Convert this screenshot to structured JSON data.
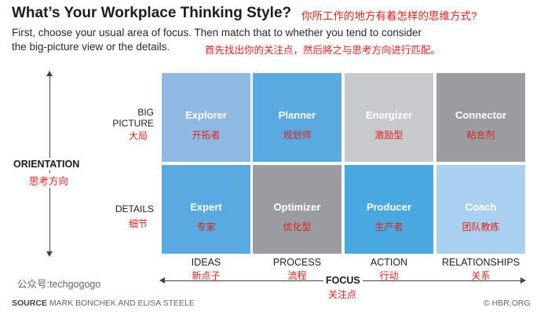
{
  "header": {
    "title": "What’s Your Workplace Thinking Style?",
    "title_cn": "你所工作的地方有着怎样的思维方式?",
    "subtitle_line1": "First, choose your usual area of focus. Then match that to whether you tend to consider",
    "subtitle_line2": "the big-picture view or the details.",
    "subtitle_cn": "首先找出你的关注点，然后將之与思考方向进行匹配。"
  },
  "orientation": {
    "label": "ORIENTATION",
    "label_cn": "思考方向"
  },
  "rows": [
    {
      "label_line1": "BIG",
      "label_line2": "PICTURE",
      "label_cn": "大局"
    },
    {
      "label_line1": "DETAILS",
      "label_cn": "细节"
    }
  ],
  "columns": [
    {
      "label": "IDEAS",
      "label_cn": "新点子"
    },
    {
      "label": "PROCESS",
      "label_cn": "流程"
    },
    {
      "label": "ACTION",
      "label_cn": "行动"
    },
    {
      "label": "RELATIONSHIPS",
      "label_cn": "关系"
    }
  ],
  "cells": [
    {
      "en": "Explorer",
      "cn": "开拓者",
      "color": "#8fb9e3"
    },
    {
      "en": "Planner",
      "cn": "规划师",
      "color": "#5aa9e0"
    },
    {
      "en": "Energizer",
      "cn": "激励型",
      "color": "#c7c9cc"
    },
    {
      "en": "Connector",
      "cn": "粘合剂",
      "color": "#9a9ca0"
    },
    {
      "en": "Expert",
      "cn": "专家",
      "color": "#5aa9e0"
    },
    {
      "en": "Optimizer",
      "cn": "优化型",
      "color": "#9a9ca0"
    },
    {
      "en": "Producer",
      "cn": "生产者",
      "color": "#4aa8e0"
    },
    {
      "en": "Coach",
      "cn": "团队教练",
      "color": "#a9d0ef"
    }
  ],
  "focus": {
    "label": "FOCUS",
    "label_cn": "关注点"
  },
  "watermark": "公众号:techgogogo",
  "source": {
    "label": "SOURCE",
    "text": " MARK BONCHEK AND ELISA STEELE"
  },
  "copyright": "© HBR.ORG"
}
